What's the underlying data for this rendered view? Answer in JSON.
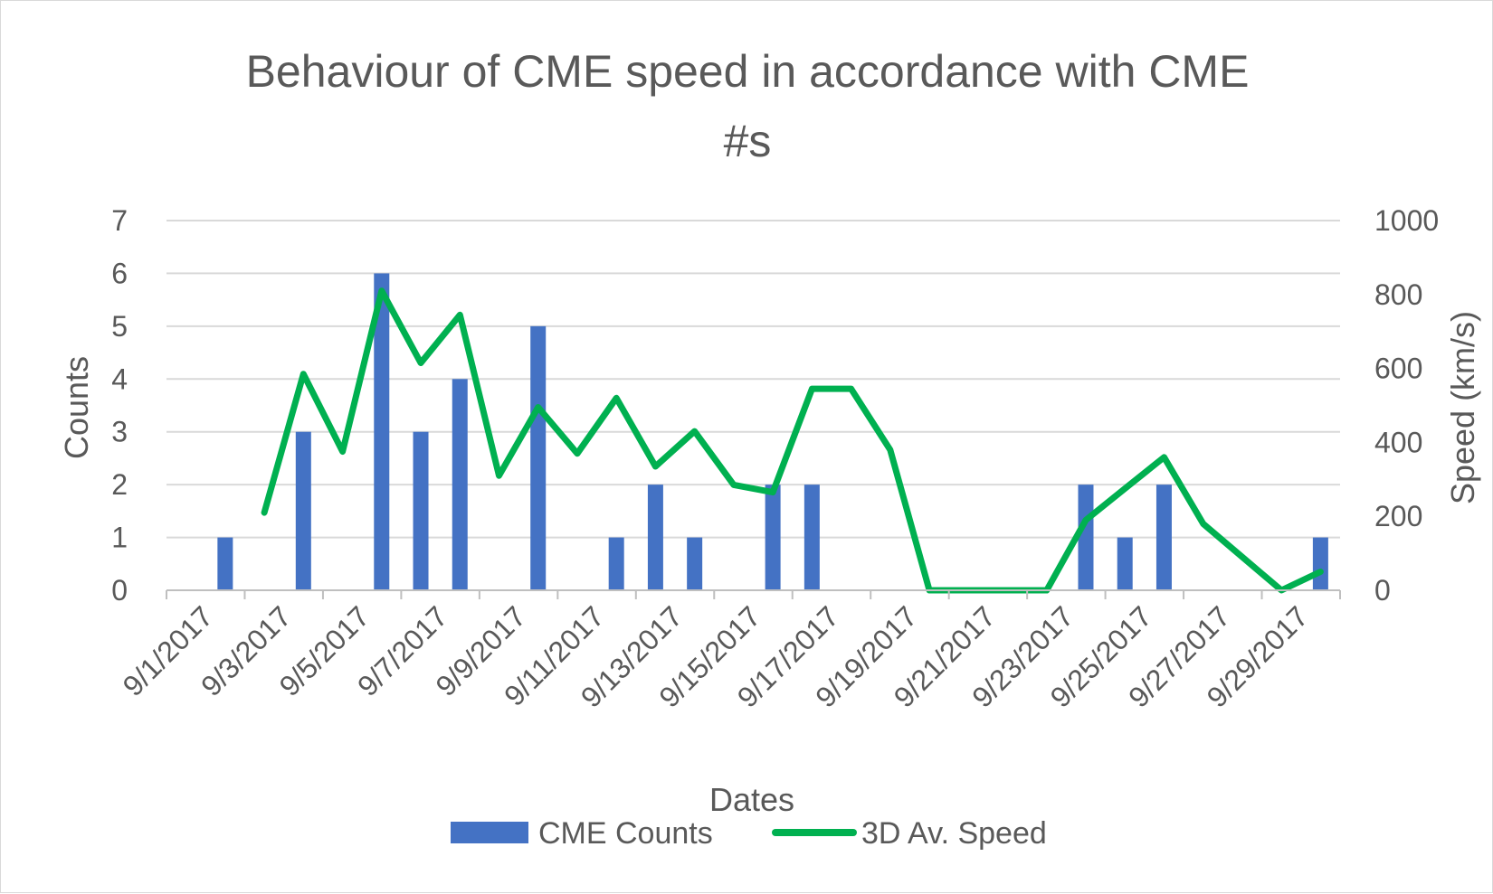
{
  "chart_data": {
    "type": "bar+line",
    "title_lines": [
      "Behaviour of CME speed in accordance with CME",
      "#s"
    ],
    "xlabel": "Dates",
    "ylabel_left": "Counts",
    "ylabel_right": "Speed (km/s)",
    "ylim_left": [
      0,
      7
    ],
    "ylim_right": [
      0,
      1000
    ],
    "yticks_left": [
      "0",
      "1",
      "2",
      "3",
      "4",
      "5",
      "6",
      "7"
    ],
    "yticks_right": [
      "0",
      "200",
      "400",
      "600",
      "800",
      "1000"
    ],
    "xtick_labels": [
      "9/1/2017",
      "9/3/2017",
      "9/5/2017",
      "9/7/2017",
      "9/9/2017",
      "9/11/2017",
      "9/13/2017",
      "9/15/2017",
      "9/17/2017",
      "9/19/2017",
      "9/21/2017",
      "9/23/2017",
      "9/25/2017",
      "9/27/2017",
      "9/29/2017"
    ],
    "grid": true,
    "legend_position": "bottom",
    "categories": [
      "9/1/2017",
      "9/2/2017",
      "9/3/2017",
      "9/4/2017",
      "9/5/2017",
      "9/6/2017",
      "9/7/2017",
      "9/8/2017",
      "9/9/2017",
      "9/10/2017",
      "9/11/2017",
      "9/12/2017",
      "9/13/2017",
      "9/14/2017",
      "9/15/2017",
      "9/16/2017",
      "9/17/2017",
      "9/18/2017",
      "9/19/2017",
      "9/20/2017",
      "9/21/2017",
      "9/22/2017",
      "9/23/2017",
      "9/24/2017",
      "9/25/2017",
      "9/26/2017",
      "9/27/2017",
      "9/28/2017",
      "9/29/2017",
      "9/30/2017"
    ],
    "series": [
      {
        "name": "CME Counts",
        "axis": "left",
        "type": "bar",
        "color": "#4472c4",
        "values": [
          0,
          1,
          0,
          3,
          0,
          6,
          3,
          4,
          0,
          5,
          0,
          1,
          2,
          1,
          0,
          2,
          2,
          0,
          0,
          0,
          0,
          0,
          0,
          2,
          1,
          2,
          0,
          0,
          0,
          1
        ]
      },
      {
        "name": "3D Av. Speed",
        "axis": "right",
        "type": "line",
        "color": "#00b050",
        "values": [
          null,
          null,
          210,
          585,
          375,
          810,
          615,
          745,
          310,
          495,
          370,
          520,
          335,
          430,
          285,
          265,
          545,
          545,
          380,
          0,
          0,
          0,
          0,
          190,
          275,
          360,
          180,
          90,
          0,
          50
        ]
      }
    ]
  }
}
